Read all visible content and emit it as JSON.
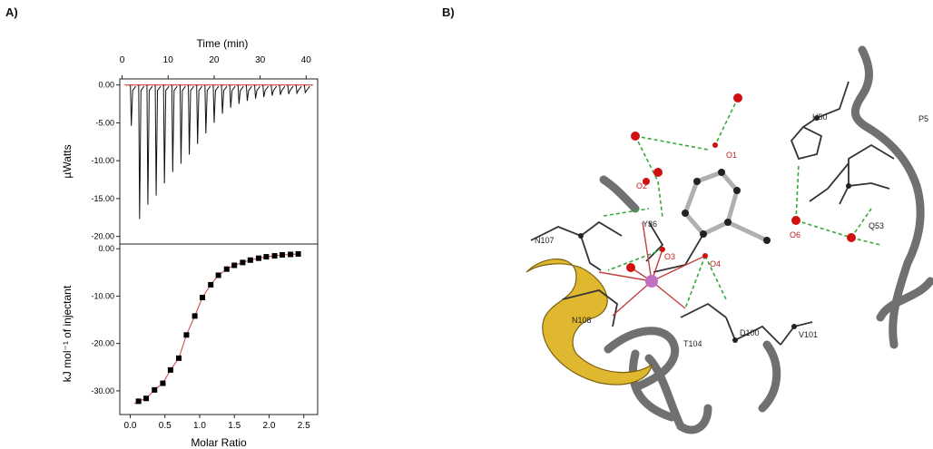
{
  "panels": {
    "a_label": "A)",
    "b_label": "B)"
  },
  "colors": {
    "fit_line": "#d04040",
    "trace": "#111111",
    "helix": "#e0b830",
    "coil": "#707070",
    "hbond": "#33aa33",
    "oxygen": "#d01010",
    "nitrogen": "#2030c0",
    "metal": "#c070c0"
  },
  "chart_data": [
    {
      "type": "line",
      "title": "",
      "xlabel": "Time (min)",
      "ylabel": "µWatts",
      "xlim": [
        -0.5,
        42.5
      ],
      "ylim": [
        -21.0,
        0.8
      ],
      "xticks": [
        "0",
        "10",
        "20",
        "30",
        "40"
      ],
      "yticks": [
        "0.00",
        "-5.00",
        "-10.00",
        "-15.00",
        "-20.00"
      ],
      "injections": {
        "time_min": [
          2.0,
          3.8,
          5.6,
          7.4,
          9.2,
          11.0,
          12.8,
          14.6,
          16.4,
          18.2,
          20.0,
          21.8,
          23.6,
          25.4,
          27.2,
          29.0,
          30.8,
          32.6,
          34.4,
          36.2,
          38.0,
          39.8
        ],
        "peak_uW": [
          -5.4,
          -17.7,
          -15.8,
          -14.6,
          -13.0,
          -11.5,
          -10.4,
          -9.2,
          -7.8,
          -6.4,
          -5.0,
          -3.8,
          -3.0,
          -2.5,
          -2.1,
          -1.8,
          -1.6,
          -1.4,
          -1.3,
          -1.2,
          -1.1,
          -1.0
        ]
      },
      "baseline_uW": 0.0
    },
    {
      "type": "scatter",
      "title": "",
      "xlabel": "Molar Ratio",
      "ylabel": "kJ mol⁻¹ of injectant",
      "xlim": [
        -0.15,
        2.7
      ],
      "ylim": [
        -35.0,
        1.0
      ],
      "xticks": [
        "0.0",
        "0.5",
        "1.0",
        "1.5",
        "2.0",
        "2.5"
      ],
      "yticks": [
        "0.00",
        "-10.00",
        "-20.00",
        "-30.00"
      ],
      "points": {
        "x": [
          0.12,
          0.23,
          0.35,
          0.47,
          0.58,
          0.7,
          0.81,
          0.93,
          1.04,
          1.16,
          1.27,
          1.39,
          1.5,
          1.62,
          1.73,
          1.85,
          1.96,
          2.08,
          2.19,
          2.31,
          2.42
        ],
        "y": [
          -32.2,
          -31.6,
          -29.8,
          -28.4,
          -25.6,
          -23.1,
          -18.2,
          -14.2,
          -10.3,
          -7.6,
          -5.6,
          -4.3,
          -3.5,
          -2.9,
          -2.4,
          -2.0,
          -1.7,
          -1.5,
          -1.3,
          -1.2,
          -1.1
        ]
      }
    }
  ],
  "structure": {
    "residue_labels": [
      "H50",
      "P5",
      "Y36",
      "N107",
      "N108",
      "Q53",
      "T104",
      "D100",
      "V101"
    ],
    "atom_labels": [
      "O1",
      "O2",
      "O3",
      "O4",
      "O6"
    ]
  }
}
